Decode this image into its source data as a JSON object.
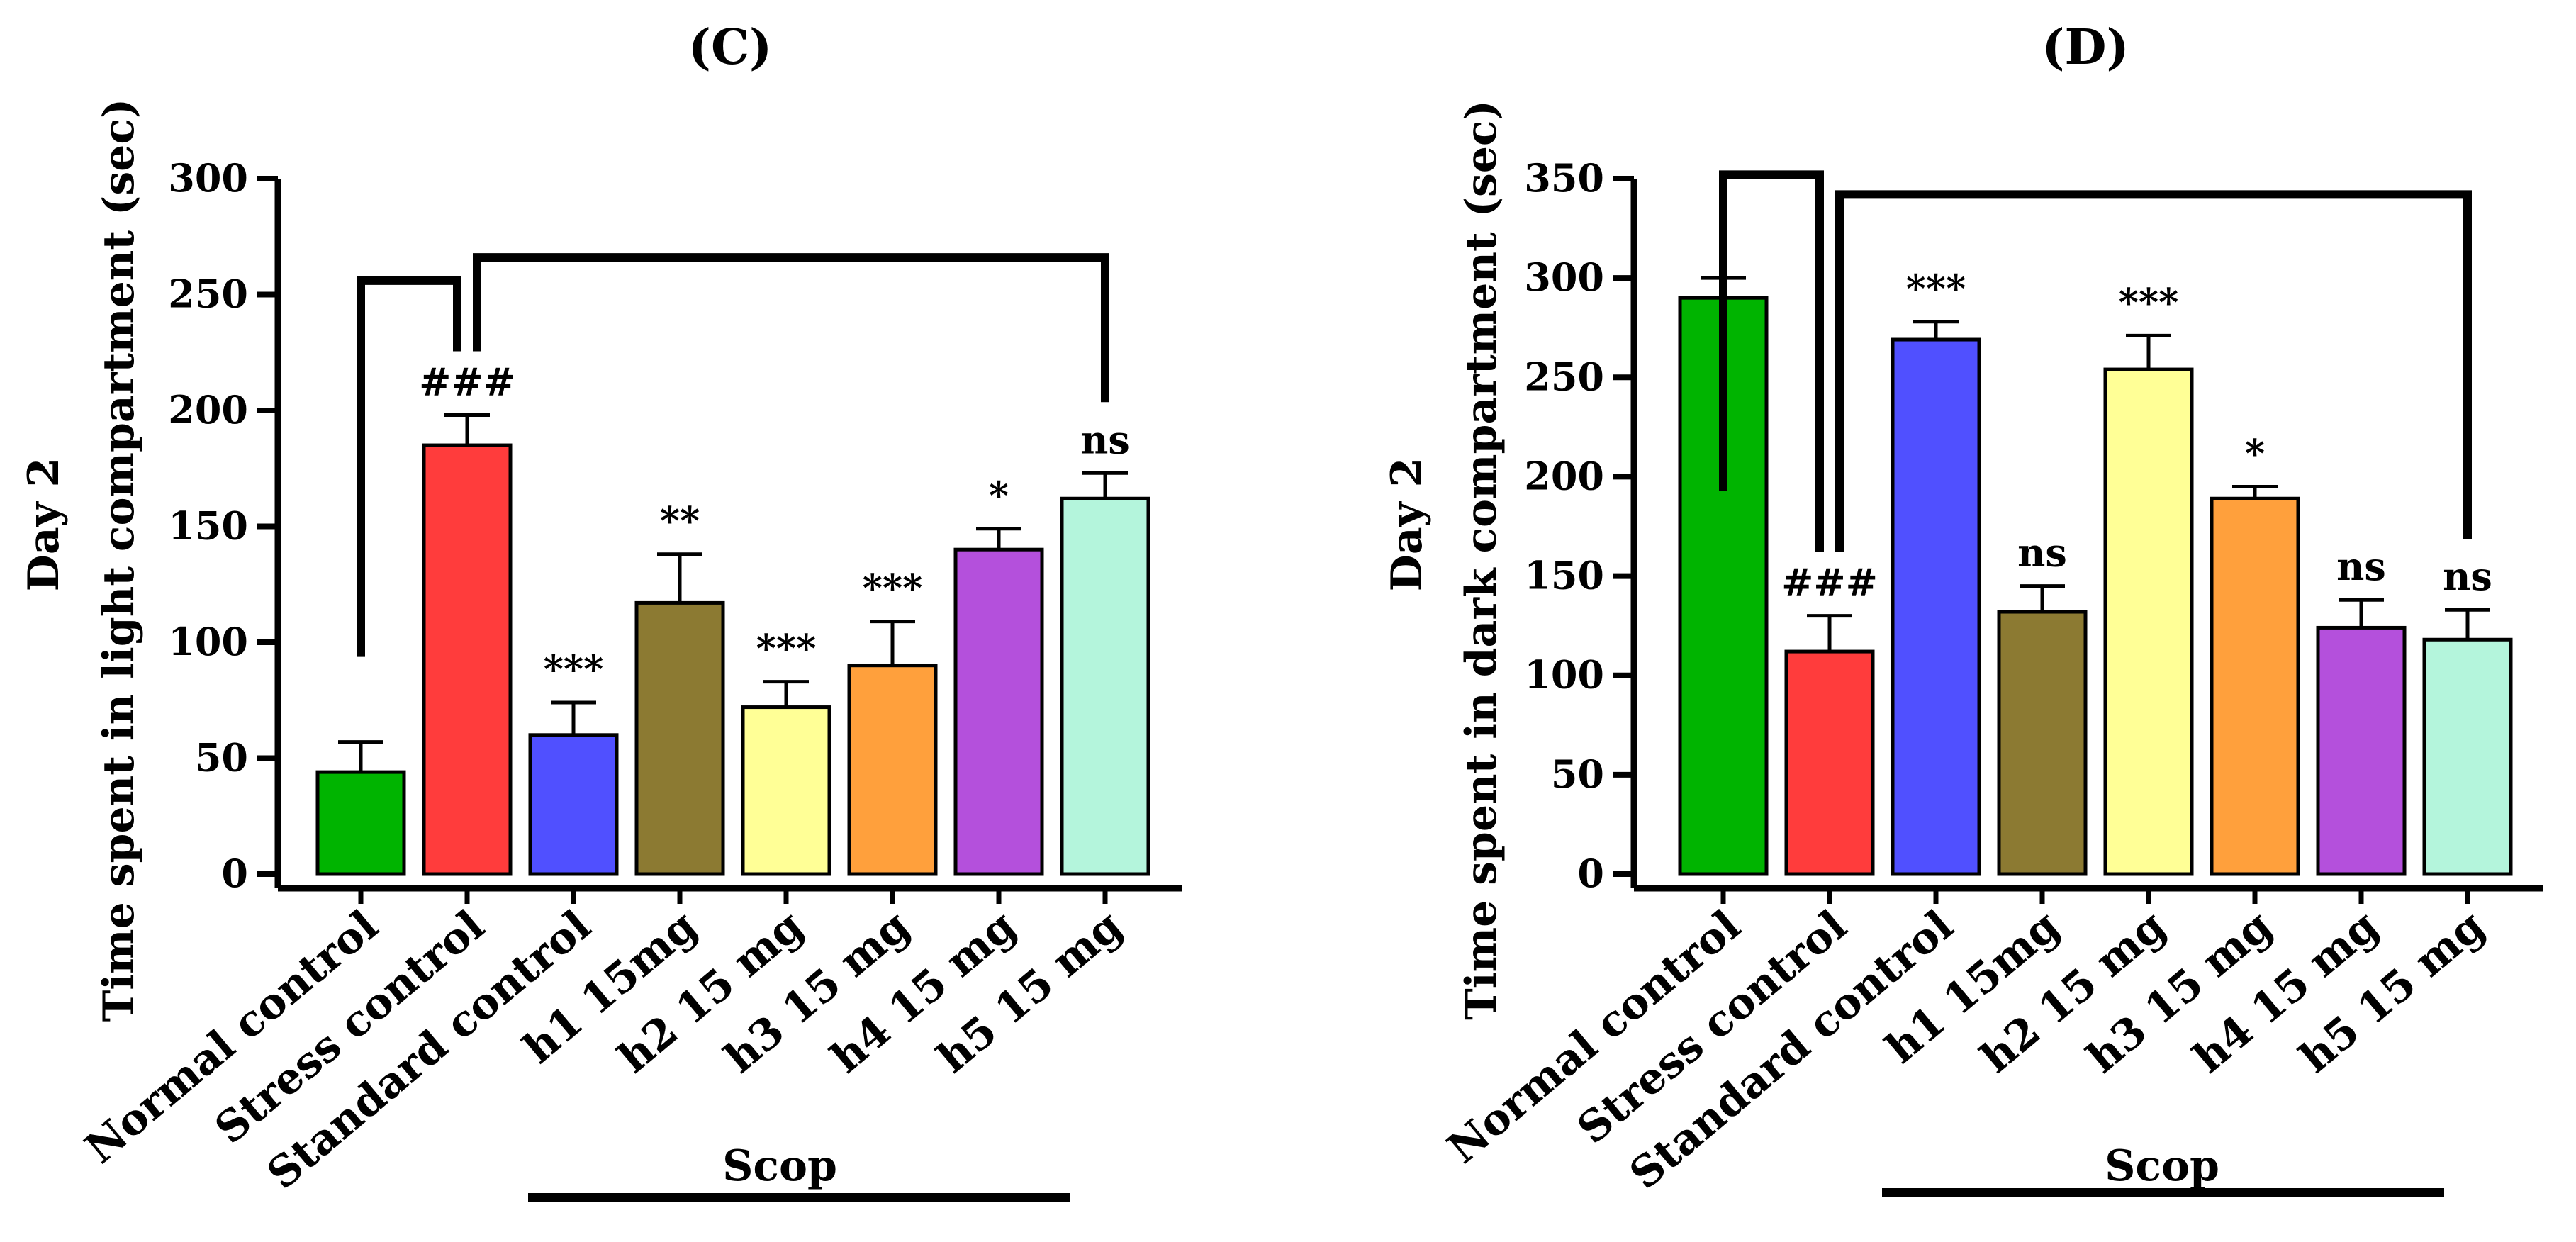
{
  "chart_data": [
    {
      "type": "bar",
      "title": "(C)",
      "ylabel_line1": "Day 2",
      "ylabel_line2": "Time spent in light compartment (sec)",
      "xlabel": "",
      "ylim": [
        0,
        300
      ],
      "yticks": [
        "0",
        "50",
        "100",
        "150",
        "200",
        "250",
        "300"
      ],
      "ytick_values": [
        0,
        50,
        100,
        150,
        200,
        250,
        300
      ],
      "categories": [
        "Normal control",
        "Stress control",
        "Standard control",
        "h1 15mg",
        "h2 15 mg",
        "h3 15 mg",
        "h4 15 mg",
        "h5 15 mg"
      ],
      "values": [
        44,
        185,
        60,
        117,
        72,
        90,
        140,
        162
      ],
      "errors": [
        13,
        13,
        14,
        21,
        11,
        19,
        9,
        11
      ],
      "colors": [
        "#00b400",
        "#ff3c3c",
        "#5050ff",
        "#8c7a32",
        "#ffff96",
        "#ffa03c",
        "#b450dc",
        "#b4f5dc"
      ],
      "annotations": [
        "",
        "###",
        "***",
        "**",
        "***",
        "***",
        "*",
        "ns"
      ],
      "group_label": "Scop",
      "group_categories_from": 2,
      "group_categories_to": 7,
      "comparison_brackets": [
        {
          "from_index": 0,
          "to_index": 1,
          "level_value": 256
        },
        {
          "from_index": 1,
          "to_index": 7,
          "level_value": 266
        }
      ]
    },
    {
      "type": "bar",
      "title": "(D)",
      "ylabel_line1": "Day 2",
      "ylabel_line2": "Time spent in dark compartment (sec)",
      "xlabel": "",
      "ylim": [
        0,
        350
      ],
      "yticks": [
        "0",
        "50",
        "100",
        "150",
        "200",
        "250",
        "300",
        "350"
      ],
      "ytick_values": [
        0,
        50,
        100,
        150,
        200,
        250,
        300,
        350
      ],
      "categories": [
        "Normal control",
        "Stress control",
        "Standard control",
        "h1 15mg",
        "h2 15 mg",
        "h3 15 mg",
        "h4 15 mg",
        "h5 15 mg"
      ],
      "values": [
        290,
        112,
        269,
        132,
        254,
        189,
        124,
        118
      ],
      "errors": [
        10,
        18,
        9,
        13,
        17,
        6,
        14,
        15
      ],
      "colors": [
        "#00b400",
        "#ff3c3c",
        "#5050ff",
        "#8c7a32",
        "#ffff96",
        "#ffa03c",
        "#b450dc",
        "#b4f5dc"
      ],
      "annotations": [
        "",
        "###",
        "***",
        "ns",
        "***",
        "*",
        "ns",
        "ns"
      ],
      "group_label": "Scop",
      "group_categories_from": 2,
      "group_categories_to": 7,
      "comparison_brackets": [
        {
          "from_index": 0,
          "to_index": 1,
          "level_value": 352
        },
        {
          "from_index": 1,
          "to_index": 7,
          "level_value": 342
        }
      ]
    }
  ]
}
